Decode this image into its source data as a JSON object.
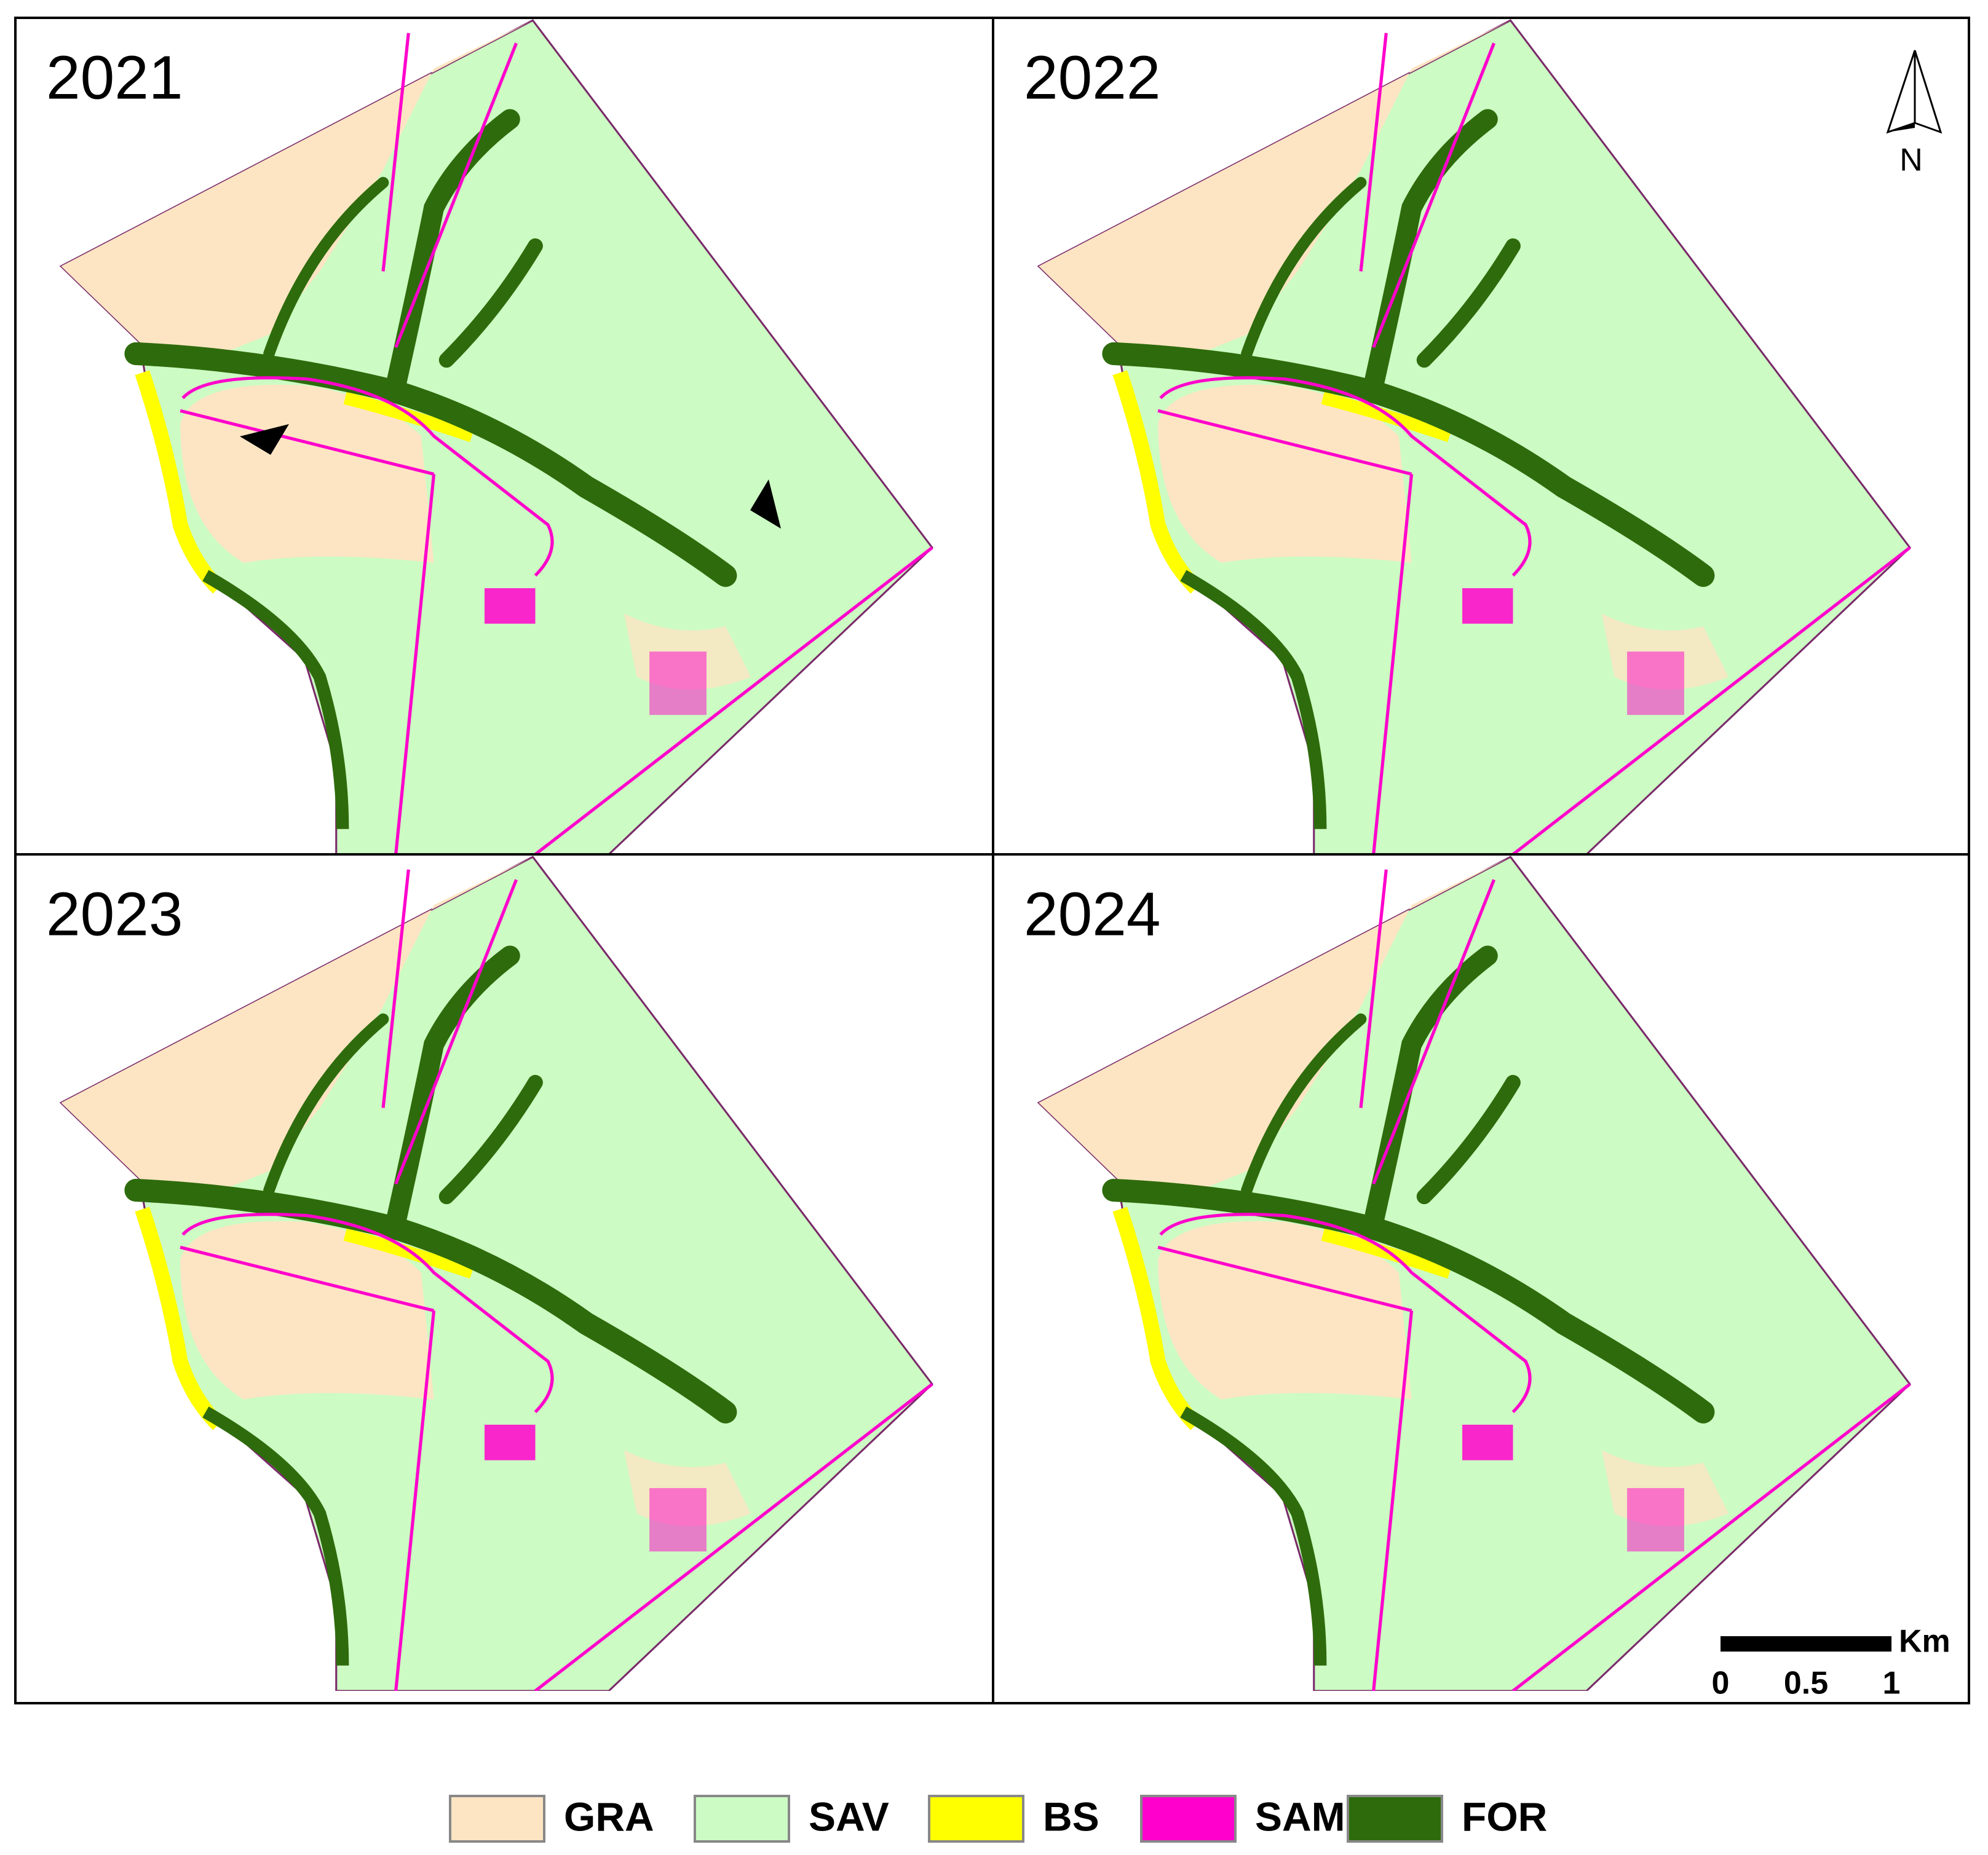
{
  "panels": [
    {
      "label": "2021"
    },
    {
      "label": "2022"
    },
    {
      "label": "2023"
    },
    {
      "label": "2024"
    }
  ],
  "north_arrow": {
    "label": "N"
  },
  "scale_bar": {
    "unit": "Km",
    "ticks": [
      "0",
      "0.5",
      "1"
    ]
  },
  "legend": [
    {
      "label": "GRA",
      "color": "#fde5c3"
    },
    {
      "label": "SAV",
      "color": "#ccfbc3"
    },
    {
      "label": "BS",
      "color": "#ffff00"
    },
    {
      "label": "SAM",
      "color": "#ff00cc"
    },
    {
      "label": "FOR",
      "color": "#2e6b0c"
    }
  ]
}
